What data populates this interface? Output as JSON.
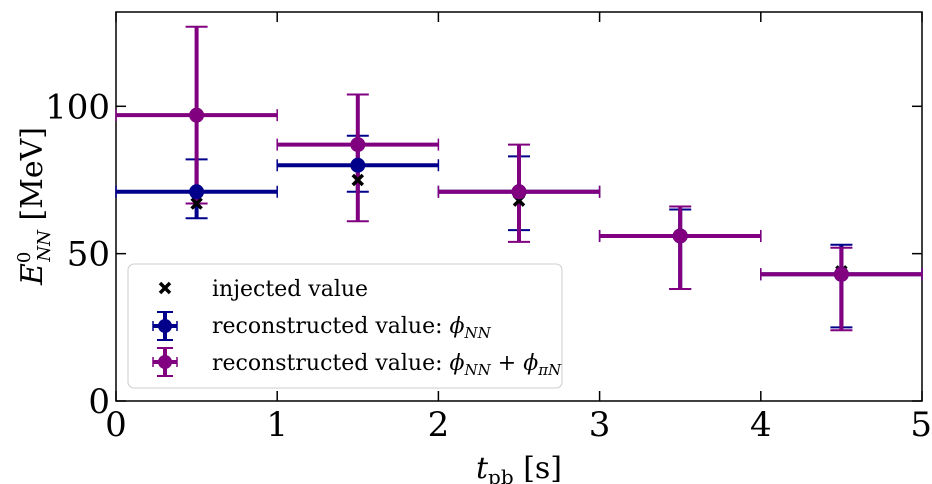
{
  "chart_data": {
    "type": "scatter",
    "xlabel": "t_pb [s]",
    "xlabel_main": "t",
    "xlabel_sub": "pb",
    "xlabel_unit": "[s]",
    "ylabel": "E^0_NN [MeV]",
    "ylabel_main": "E",
    "ylabel_sup": "0",
    "ylabel_sub": "NN",
    "ylabel_unit": "[MeV]",
    "xlim": [
      0,
      5
    ],
    "ylim": [
      0,
      132
    ],
    "xticks": [
      0,
      1,
      2,
      3,
      4,
      5
    ],
    "yticks": [
      0,
      50,
      100
    ],
    "grid": false,
    "legend_placement": "lower-left",
    "series": [
      {
        "name": "injected value",
        "marker": "x",
        "color": "#000000",
        "points": [
          {
            "x": 0.5,
            "y": 67
          },
          {
            "x": 1.5,
            "y": 75
          },
          {
            "x": 2.5,
            "y": 68
          },
          {
            "x": 3.5,
            "y": 56
          },
          {
            "x": 4.5,
            "y": 44
          }
        ]
      },
      {
        "name": "reconstructed value: ϕ_NN",
        "name_prefix": "reconstructed value: ",
        "name_main": "ϕ",
        "name_sub": "NN",
        "marker": "circle",
        "color": "#00008b",
        "points": [
          {
            "x": 0.5,
            "y": 71,
            "xerr": 0.5,
            "ylow": 62,
            "yhigh": 82
          },
          {
            "x": 1.5,
            "y": 80,
            "xerr": 0.5,
            "ylow": 71,
            "yhigh": 90
          },
          {
            "x": 2.5,
            "y": 71,
            "xerr": 0.5,
            "ylow": 58,
            "yhigh": 83
          },
          {
            "x": 3.5,
            "y": 56,
            "xerr": 0.5,
            "ylow": 38,
            "yhigh": 65
          },
          {
            "x": 4.5,
            "y": 43,
            "xerr": 0.5,
            "ylow": 25,
            "yhigh": 53
          }
        ]
      },
      {
        "name": "reconstructed value: ϕ_NN + ϕ_πN",
        "name_prefix": "reconstructed value: ",
        "name_main": "ϕ",
        "name_sub": "NN",
        "name_plus": " + ",
        "name_main2": "ϕ",
        "name_sub2": "πN",
        "marker": "circle",
        "color": "#800080",
        "points": [
          {
            "x": 0.5,
            "y": 97,
            "xerr": 0.5,
            "ylow": 67,
            "yhigh": 127
          },
          {
            "x": 1.5,
            "y": 87,
            "xerr": 0.5,
            "ylow": 61,
            "yhigh": 104
          },
          {
            "x": 2.5,
            "y": 71,
            "xerr": 0.5,
            "ylow": 54,
            "yhigh": 87
          },
          {
            "x": 3.5,
            "y": 56,
            "xerr": 0.5,
            "ylow": 38,
            "yhigh": 66
          },
          {
            "x": 4.5,
            "y": 43,
            "xerr": 0.5,
            "ylow": 24,
            "yhigh": 52
          }
        ]
      }
    ]
  }
}
